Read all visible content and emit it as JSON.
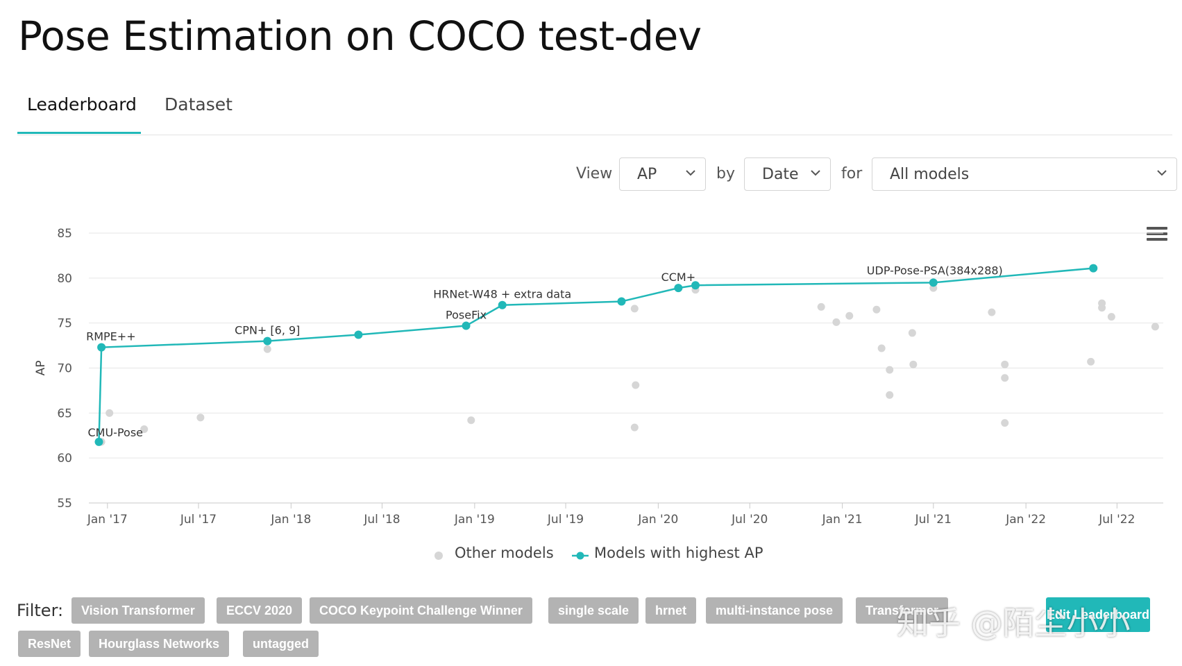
{
  "page": {
    "title": "Pose Estimation on COCO test-dev"
  },
  "tabs": [
    {
      "label": "Leaderboard",
      "active": true
    },
    {
      "label": "Dataset",
      "active": false
    }
  ],
  "controls": {
    "view_label": "View",
    "view_value": "AP",
    "by_label": "by",
    "by_value": "Date",
    "for_label": "for",
    "for_value": "All models"
  },
  "chart_data": {
    "type": "scatter",
    "ylabel": "AP",
    "ylim": [
      55,
      85
    ],
    "y_ticks": [
      55,
      60,
      65,
      70,
      75,
      80,
      85
    ],
    "x_ticks": [
      {
        "date": "2017-01-01",
        "label": "Jan '17"
      },
      {
        "date": "2017-07-01",
        "label": "Jul '17"
      },
      {
        "date": "2018-01-01",
        "label": "Jan '18"
      },
      {
        "date": "2018-07-01",
        "label": "Jul '18"
      },
      {
        "date": "2019-01-01",
        "label": "Jan '19"
      },
      {
        "date": "2019-07-01",
        "label": "Jul '19"
      },
      {
        "date": "2020-01-01",
        "label": "Jan '20"
      },
      {
        "date": "2020-07-01",
        "label": "Jul '20"
      },
      {
        "date": "2021-01-01",
        "label": "Jan '21"
      },
      {
        "date": "2021-07-01",
        "label": "Jul '21"
      },
      {
        "date": "2022-01-01",
        "label": "Jan '22"
      },
      {
        "date": "2022-07-01",
        "label": "Jul '22"
      }
    ],
    "xlim": [
      "2016-11-25",
      "2022-10-01"
    ],
    "grid": true,
    "legend_position": "bottom",
    "series": [
      {
        "name": "Other models",
        "color": "#d6d6d6",
        "points": [
          {
            "x": "2016-12-20",
            "y": 61.8
          },
          {
            "x": "2017-01-05",
            "y": 65.0
          },
          {
            "x": "2017-03-15",
            "y": 63.2
          },
          {
            "x": "2017-07-05",
            "y": 64.5
          },
          {
            "x": "2017-11-15",
            "y": 72.1
          },
          {
            "x": "2018-12-25",
            "y": 64.2
          },
          {
            "x": "2019-11-15",
            "y": 76.6
          },
          {
            "x": "2019-11-17",
            "y": 68.1
          },
          {
            "x": "2019-11-15",
            "y": 63.4
          },
          {
            "x": "2020-03-15",
            "y": 78.7
          },
          {
            "x": "2020-11-20",
            "y": 76.8
          },
          {
            "x": "2020-12-20",
            "y": 75.1
          },
          {
            "x": "2021-01-15",
            "y": 75.8
          },
          {
            "x": "2021-03-10",
            "y": 76.5
          },
          {
            "x": "2021-03-20",
            "y": 72.2
          },
          {
            "x": "2021-04-05",
            "y": 69.8
          },
          {
            "x": "2021-04-05",
            "y": 67.0
          },
          {
            "x": "2021-05-20",
            "y": 73.9
          },
          {
            "x": "2021-05-22",
            "y": 70.4
          },
          {
            "x": "2021-07-01",
            "y": 78.9
          },
          {
            "x": "2021-10-25",
            "y": 76.2
          },
          {
            "x": "2021-11-20",
            "y": 70.4
          },
          {
            "x": "2021-11-20",
            "y": 68.9
          },
          {
            "x": "2021-11-20",
            "y": 63.9
          },
          {
            "x": "2022-05-10",
            "y": 70.7
          },
          {
            "x": "2022-06-01",
            "y": 77.2
          },
          {
            "x": "2022-06-01",
            "y": 76.7
          },
          {
            "x": "2022-06-20",
            "y": 75.7
          },
          {
            "x": "2022-09-15",
            "y": 74.6
          }
        ]
      },
      {
        "name": "Models with highest AP",
        "color": "#21b8b8",
        "points": [
          {
            "x": "2016-12-15",
            "y": 61.8,
            "label": "CMU-Pose"
          },
          {
            "x": "2016-12-20",
            "y": 72.3,
            "label": "RMPE++"
          },
          {
            "x": "2017-11-15",
            "y": 73.0,
            "label": "CPN+ [6, 9]"
          },
          {
            "x": "2018-05-15",
            "y": 73.7
          },
          {
            "x": "2018-12-15",
            "y": 74.7,
            "label": "PoseFix"
          },
          {
            "x": "2019-02-25",
            "y": 77.0,
            "label": "HRNet-W48 + extra data"
          },
          {
            "x": "2019-10-20",
            "y": 77.4
          },
          {
            "x": "2020-02-10",
            "y": 78.9,
            "label": "CCM+"
          },
          {
            "x": "2020-03-15",
            "y": 79.2
          },
          {
            "x": "2021-07-01",
            "y": 79.5,
            "label": "UDP-Pose-PSA(384x288)"
          },
          {
            "x": "2022-05-15",
            "y": 81.1
          }
        ]
      }
    ]
  },
  "legend": {
    "other": "Other models",
    "best": "Models with highest AP"
  },
  "filter": {
    "label": "Filter:",
    "tags": [
      "Vision Transformer",
      "ECCV 2020",
      "COCO Keypoint Challenge Winner",
      "single scale",
      "hrnet",
      "multi-instance pose",
      "Transformer",
      "ResNet",
      "Hourglass Networks",
      "untagged"
    ]
  },
  "actions": {
    "edit_leaderboard": "Edit Leaderboard"
  },
  "watermark": "知乎 @陌尘小小"
}
